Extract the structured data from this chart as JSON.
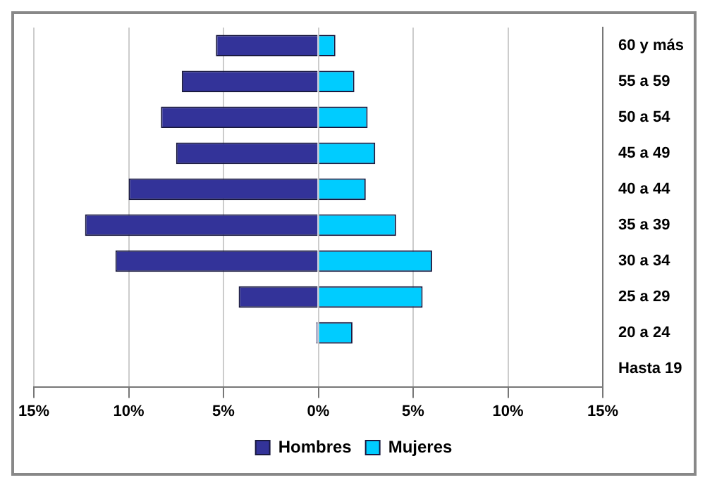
{
  "chart_data": {
    "type": "bar",
    "orientation": "horizontal",
    "stacked": true,
    "categories": [
      "60 y más",
      "55 a 59",
      "50 a 54",
      "45 a 49",
      "40 a 44",
      "35 a 39",
      "30 a 34",
      "25 a 29",
      "20 a 24",
      "Hasta 19"
    ],
    "series": [
      {
        "name": "Hombres",
        "color": "#333399",
        "values": [
          -5.4,
          -7.2,
          -8.3,
          -7.5,
          -10,
          -12.3,
          -10.7,
          -4.2,
          -0.1,
          0
        ]
      },
      {
        "name": "Mujeres",
        "color": "#00ccff",
        "values": [
          0.9,
          1.9,
          2.6,
          3.0,
          2.5,
          4.1,
          6.0,
          5.5,
          1.8,
          0
        ]
      }
    ],
    "xlim": [
      -15,
      15
    ],
    "xticks": [
      {
        "value": -15,
        "label": "15%"
      },
      {
        "value": -10,
        "label": "10%"
      },
      {
        "value": -5,
        "label": "5%"
      },
      {
        "value": 0,
        "label": "0%"
      },
      {
        "value": 5,
        "label": "5%"
      },
      {
        "value": 10,
        "label": "10%"
      },
      {
        "value": 15,
        "label": "15%"
      }
    ],
    "grid": "x",
    "legend": "bottom"
  }
}
